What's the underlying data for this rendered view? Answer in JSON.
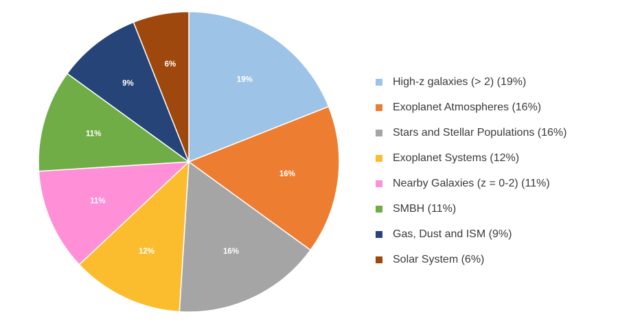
{
  "chart_data": {
    "type": "pie",
    "title": "",
    "start_angle": "12 o'clock, clockwise",
    "legend_position": "right",
    "slices": [
      {
        "name": "High-z galaxies (> 2) (19%)",
        "value": 19,
        "label": "19%",
        "color": "#9dc3e6"
      },
      {
        "name": "Exoplanet Atmospheres (16%)",
        "value": 16,
        "label": "16%",
        "color": "#ed7d31"
      },
      {
        "name": "Stars and Stellar Populations (16%)",
        "value": 16,
        "label": "16%",
        "color": "#a5a5a5"
      },
      {
        "name": "Exoplanet Systems (12%)",
        "value": 12,
        "label": "12%",
        "color": "#fbbd2e"
      },
      {
        "name": "Nearby Galaxies (z = 0-2) (11%)",
        "value": 11,
        "label": "11%",
        "color": "#ff8fd6"
      },
      {
        "name": "SMBH (11%)",
        "value": 11,
        "label": "11%",
        "color": "#70ad47"
      },
      {
        "name": "Gas, Dust and ISM (9%)",
        "value": 9,
        "label": "9%",
        "color": "#264478"
      },
      {
        "name": "Solar System (6%)",
        "value": 6,
        "label": "6%",
        "color": "#9e480e"
      }
    ]
  }
}
